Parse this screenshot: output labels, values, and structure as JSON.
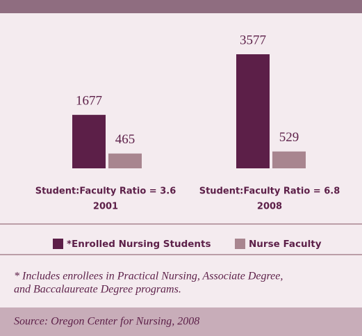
{
  "chart_data": {
    "type": "bar",
    "categories": [
      "2001",
      "2008"
    ],
    "annotations": [
      "Student:Faculty Ratio = 3.6",
      "Student:Faculty Ratio = 6.8"
    ],
    "series": [
      {
        "name": "*Enrolled Nursing Students",
        "color": "#5c1f48",
        "values": [
          1677,
          3577
        ]
      },
      {
        "name": "Nurse Faculty",
        "color": "#a8858f",
        "values": [
          465,
          529
        ]
      }
    ],
    "footnote": [
      "* Includes enrollees in Practical Nursing, Associate Degree,",
      "and Baccalaureate Degree programs."
    ],
    "source": "Source: Oregon Center for Nursing, 2008"
  }
}
